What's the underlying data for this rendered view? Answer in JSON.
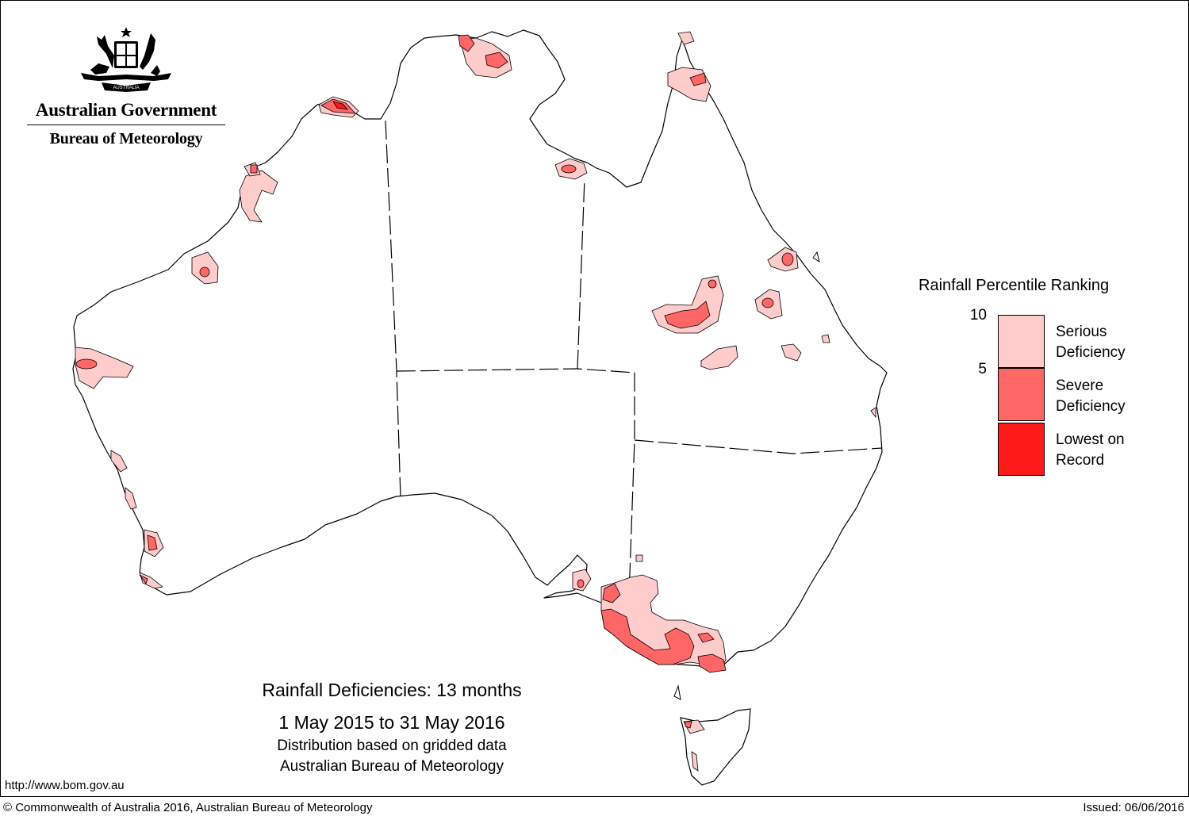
{
  "header": {
    "government": "Australian Government",
    "bureau": "Bureau of Meteorology"
  },
  "titles": {
    "main": "Rainfall Deficiencies: 13 months",
    "period": "1 May 2015 to 31 May 2016",
    "method": "Distribution based on gridded data",
    "source": "Australian Bureau of Meteorology"
  },
  "legend": {
    "title": "Rainfall Percentile Ranking",
    "ticks": [
      "10",
      "5"
    ],
    "classes": [
      {
        "label_line1": "Serious",
        "label_line2": "Deficiency",
        "color": "#ffcccc"
      },
      {
        "label_line1": "Severe",
        "label_line2": "Deficiency",
        "color": "#ff6666"
      },
      {
        "label_line1": "Lowest on",
        "label_line2": "Record",
        "color": "#ff1a1a"
      }
    ]
  },
  "footer": {
    "url": "http://www.bom.gov.au",
    "copyright": "© Commonwealth of Australia 2016, Australian Bureau of Meteorology",
    "issued": "Issued: 06/06/2016"
  },
  "colors": {
    "serious": "#ffcccc",
    "severe": "#ff6666",
    "lowest": "#ff1a1a"
  }
}
